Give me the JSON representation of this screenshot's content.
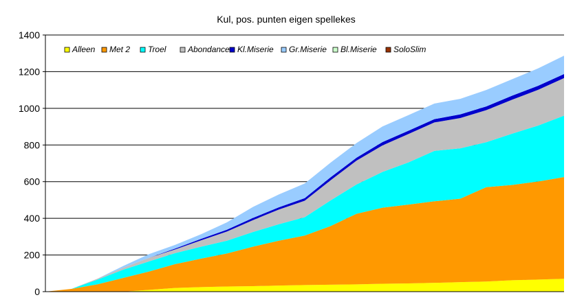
{
  "chart_data": {
    "type": "area",
    "title": "Kul, pos. punten eigen spellekes",
    "xlabel": "",
    "ylabel": "",
    "ylim": [
      0,
      1400
    ],
    "yticks": [
      0,
      200,
      400,
      600,
      800,
      1000,
      1200,
      1400
    ],
    "grid": true,
    "legend": "top-left",
    "stacked": true,
    "x": [
      0,
      5,
      10,
      15,
      20,
      25,
      30,
      35,
      40,
      45,
      50,
      55,
      60,
      65,
      70,
      75,
      80,
      85,
      90,
      95,
      100
    ],
    "series": [
      {
        "name": "Alleen",
        "color": "#ffff00",
        "values": [
          0,
          0,
          0,
          0,
          10,
          20,
          25,
          28,
          30,
          33,
          36,
          38,
          40,
          43,
          45,
          48,
          52,
          55,
          62,
          66,
          70
        ]
      },
      {
        "name": "Met 2",
        "color": "#ff9900",
        "values": [
          0,
          15,
          40,
          75,
          100,
          130,
          155,
          180,
          215,
          245,
          270,
          320,
          385,
          415,
          430,
          445,
          455,
          515,
          520,
          535,
          555
        ]
      },
      {
        "name": "Troel",
        "color": "#00ffff",
        "values": [
          0,
          0,
          25,
          45,
          55,
          60,
          65,
          70,
          80,
          90,
          100,
          140,
          160,
          195,
          230,
          275,
          275,
          245,
          280,
          305,
          335
        ]
      },
      {
        "name": "Abondance",
        "color": "#c0c0c0",
        "values": [
          0,
          0,
          5,
          10,
          20,
          20,
          35,
          50,
          65,
          80,
          90,
          110,
          130,
          145,
          155,
          155,
          165,
          175,
          185,
          195,
          205
        ]
      },
      {
        "name": "Kl.Miserie",
        "color": "#0000cc",
        "values": [
          0,
          0,
          0,
          0,
          0,
          5,
          8,
          10,
          12,
          12,
          14,
          16,
          16,
          18,
          18,
          18,
          20,
          20,
          22,
          22,
          22
        ]
      },
      {
        "name": "Gr.Miserie",
        "color": "#99ccff",
        "values": [
          0,
          0,
          0,
          10,
          20,
          20,
          25,
          40,
          60,
          70,
          80,
          80,
          80,
          85,
          85,
          85,
          85,
          90,
          90,
          95,
          100
        ]
      },
      {
        "name": "Bl.Miserie",
        "color": "#ccffcc",
        "values": [
          0,
          0,
          0,
          0,
          0,
          0,
          0,
          0,
          0,
          0,
          0,
          0,
          0,
          0,
          0,
          0,
          0,
          0,
          0,
          0,
          0
        ]
      },
      {
        "name": "SoloSlim",
        "color": "#993300",
        "values": [
          0,
          0,
          0,
          0,
          0,
          0,
          0,
          0,
          0,
          0,
          0,
          0,
          0,
          0,
          0,
          0,
          0,
          0,
          0,
          0,
          0
        ]
      }
    ]
  }
}
